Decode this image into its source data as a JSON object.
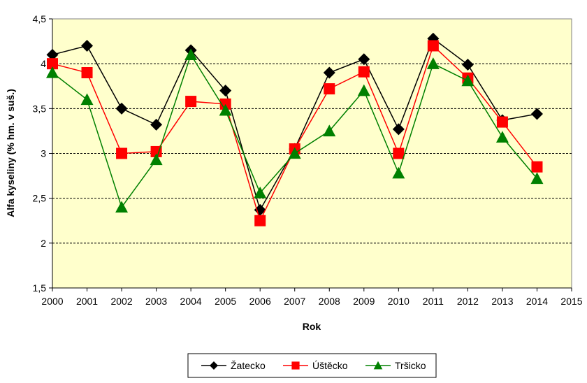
{
  "chart_data": {
    "type": "line",
    "xlabel": "Rok",
    "ylabel": "Alfa kyseliny (% hm. v suš.)",
    "xlim": [
      2000,
      2015
    ],
    "ylim": [
      1.5,
      4.5
    ],
    "x_ticks": [
      "2000",
      "2001",
      "2002",
      "2003",
      "2004",
      "2005",
      "2006",
      "2007",
      "2008",
      "2009",
      "2010",
      "2011",
      "2012",
      "2013",
      "2014",
      "2015"
    ],
    "y_ticks": [
      "1,5",
      "2",
      "2,5",
      "3",
      "3,5",
      "4",
      "4,5"
    ],
    "y_tick_values": [
      1.5,
      2,
      2.5,
      3,
      3.5,
      4,
      4.5
    ],
    "grid": "horizontal-dashed",
    "legend_position": "bottom",
    "plot_background": "#ffffcc",
    "series": [
      {
        "name": "Žatecko",
        "color": "#000000",
        "marker": "diamond",
        "x": [
          2000,
          2001,
          2002,
          2003,
          2004,
          2005,
          2006,
          2007,
          2008,
          2009,
          2010,
          2011,
          2012,
          2013,
          2014
        ],
        "values": [
          4.1,
          4.2,
          3.5,
          3.32,
          4.15,
          3.7,
          2.37,
          3.05,
          3.9,
          4.05,
          3.27,
          4.28,
          3.99,
          3.37,
          3.44
        ]
      },
      {
        "name": "Úštěcko",
        "color": "#ff0000",
        "marker": "square",
        "x": [
          2000,
          2001,
          2002,
          2003,
          2004,
          2005,
          2006,
          2007,
          2008,
          2009,
          2010,
          2011,
          2012,
          2013,
          2014
        ],
        "values": [
          4.0,
          3.9,
          3.0,
          3.02,
          3.58,
          3.55,
          2.25,
          3.05,
          3.72,
          3.91,
          3.0,
          4.2,
          3.84,
          3.35,
          2.85
        ]
      },
      {
        "name": "Tršicko",
        "color": "#008000",
        "marker": "triangle",
        "x": [
          2000,
          2001,
          2002,
          2003,
          2004,
          2005,
          2006,
          2007,
          2008,
          2009,
          2010,
          2011,
          2012,
          2013,
          2014
        ],
        "values": [
          3.9,
          3.6,
          2.4,
          2.93,
          4.1,
          3.48,
          2.56,
          3.0,
          3.25,
          3.7,
          2.78,
          4.0,
          3.81,
          3.18,
          2.72
        ]
      }
    ]
  }
}
